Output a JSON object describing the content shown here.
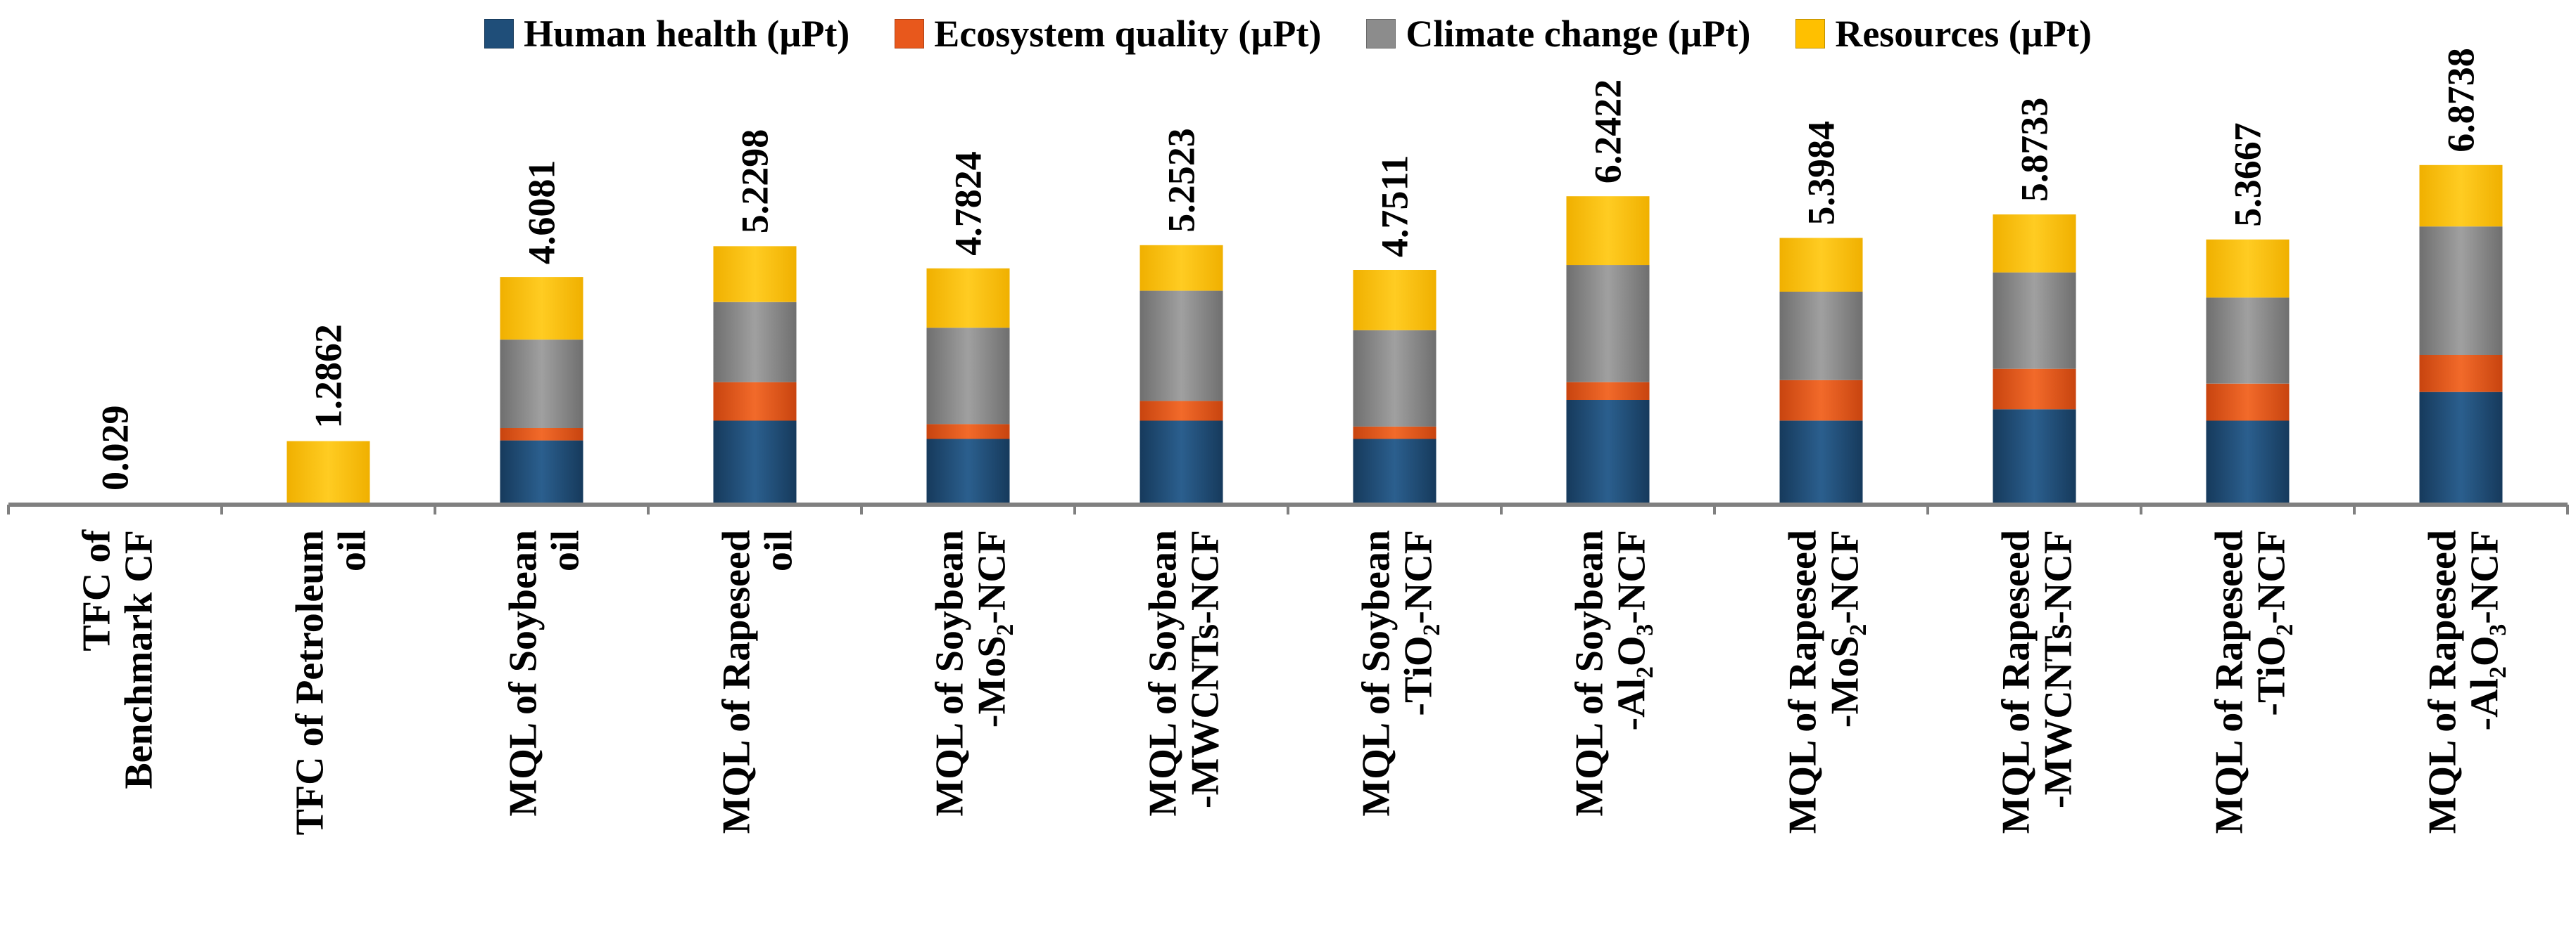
{
  "chart_data": {
    "type": "bar",
    "stacked": true,
    "title": "",
    "xlabel": "",
    "ylabel": "",
    "ylim": [
      0,
      7.4
    ],
    "categories": [
      [
        "TFC of",
        "Benchmark CF"
      ],
      [
        "TFC of Petroleum",
        "oil"
      ],
      [
        "MQL of Soybean",
        "oil"
      ],
      [
        "MQL of Rapeseed",
        "oil"
      ],
      [
        "MQL of Soybean",
        "-MoS₂-NCF"
      ],
      [
        "MQL of Soybean",
        "-MWCNTs-NCF"
      ],
      [
        "MQL of Soybean",
        "-TiO₂-NCF"
      ],
      [
        "MQL of Soybean",
        "-Al₂O₃-NCF"
      ],
      [
        "MQL of Rapeseed",
        "-MoS₂-NCF"
      ],
      [
        "MQL of Rapeseed",
        "-MWCNTs-NCF"
      ],
      [
        "MQL of Rapeseed",
        "-TiO₂-NCF"
      ],
      [
        "MQL of Rapeseed",
        "-Al₂O₃-NCF"
      ]
    ],
    "totals": [
      "0.029",
      "1.2862",
      "4.6081",
      "5.2298",
      "4.7824",
      "5.2523",
      "4.7511",
      "6.2422",
      "5.3984",
      "5.8733",
      "5.3667",
      "6.8738"
    ],
    "series": [
      {
        "name": "Human health (µPt)",
        "color": "#1F4E79",
        "values": [
          0.0,
          0.0,
          1.3,
          1.7,
          1.33,
          1.7,
          1.33,
          2.12,
          1.7,
          1.93,
          1.7,
          2.28
        ]
      },
      {
        "name": "Ecosystem quality (µPt)",
        "color": "#E8581C",
        "values": [
          0.0,
          0.0,
          0.25,
          0.78,
          0.3,
          0.4,
          0.25,
          0.36,
          0.82,
          0.82,
          0.75,
          0.75
        ]
      },
      {
        "name": "Climate change (µPt)",
        "color": "#8C8C8C",
        "values": [
          0.0,
          0.0,
          1.79,
          1.62,
          1.95,
          2.23,
          1.95,
          2.37,
          1.79,
          1.95,
          1.74,
          2.6
        ]
      },
      {
        "name": "Resources (µPt)",
        "color": "#FFC000",
        "values": [
          0.029,
          1.2862,
          1.2681,
          1.1298,
          1.2024,
          0.9223,
          1.2211,
          1.3922,
          1.0884,
          1.1733,
          1.1767,
          1.2438
        ]
      }
    ],
    "legend": "top"
  }
}
